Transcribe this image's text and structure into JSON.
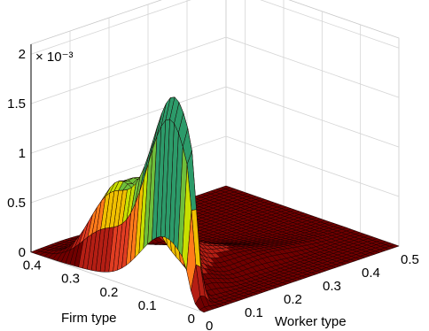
{
  "chart_data": {
    "type": "surface",
    "xlabel": "Worker type",
    "ylabel": "Firm type",
    "zlabel": "",
    "exponent_label": "× 10⁻³",
    "x_range": [
      0,
      0.5
    ],
    "y_range": [
      0,
      0.45
    ],
    "z_range": [
      0,
      2.1
    ],
    "x_ticks": [
      {
        "value": 0,
        "label": "0"
      },
      {
        "value": 0.1,
        "label": "0.1"
      },
      {
        "value": 0.2,
        "label": "0.2"
      },
      {
        "value": 0.3,
        "label": "0.3"
      },
      {
        "value": 0.4,
        "label": "0.4"
      },
      {
        "value": 0.5,
        "label": "0.5"
      }
    ],
    "y_ticks": [
      {
        "value": 0,
        "label": "0"
      },
      {
        "value": 0.1,
        "label": "0.1"
      },
      {
        "value": 0.2,
        "label": "0.2"
      },
      {
        "value": 0.3,
        "label": "0.3"
      },
      {
        "value": 0.4,
        "label": "0.4"
      }
    ],
    "z_ticks": [
      {
        "value": 0,
        "label": "0"
      },
      {
        "value": 0.5,
        "label": "0.5"
      },
      {
        "value": 1,
        "label": "1"
      },
      {
        "value": 1.5,
        "label": "1.5"
      },
      {
        "value": 2,
        "label": "2"
      }
    ],
    "surface_profile": {
      "description_free": true,
      "peak": {
        "x": 0.02,
        "y": 0.1,
        "z": 2.1
      },
      "secondary_peak": {
        "x": 0.07,
        "y": 0.28,
        "z": 0.95
      },
      "baseline_z": 0
    },
    "colormap": [
      "#700000",
      "#b41e14",
      "#e03d22",
      "#ff7a1a",
      "#f0c000",
      "#c8e000",
      "#6fbf3a",
      "#2c9b6a"
    ],
    "grid": true
  }
}
